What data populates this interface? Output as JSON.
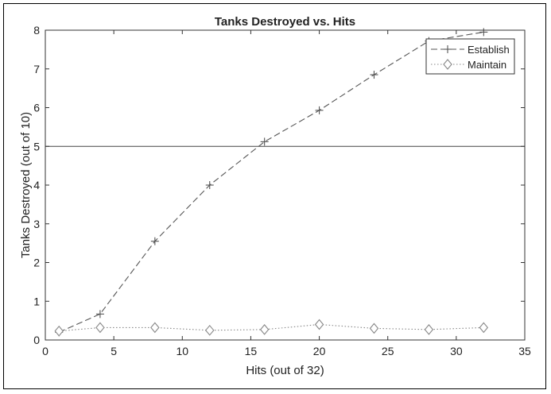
{
  "chart_data": {
    "type": "line",
    "title": "Tanks Destroyed vs. Hits",
    "xlabel": "Hits (out of 32)",
    "ylabel": "Tanks Destroyed (out of 10)",
    "xlim": [
      0,
      35
    ],
    "ylim": [
      0,
      8
    ],
    "xticks": [
      0,
      5,
      10,
      15,
      20,
      25,
      30,
      35
    ],
    "yticks": [
      0,
      1,
      2,
      3,
      4,
      5,
      6,
      7,
      8
    ],
    "grid": false,
    "legend_position": "top-right",
    "reference_lines": [
      {
        "axis": "y",
        "value": 5
      }
    ],
    "series": [
      {
        "name": "Establish",
        "marker": "plus",
        "line_style": "dashed",
        "color": "#555555",
        "x": [
          1,
          4,
          8,
          12,
          16,
          20,
          24,
          28,
          32
        ],
        "y": [
          0.2,
          0.67,
          2.55,
          4.0,
          5.12,
          5.93,
          6.85,
          7.72,
          7.95
        ]
      },
      {
        "name": "Maintain",
        "marker": "diamond",
        "line_style": "dotted",
        "color": "#888888",
        "x": [
          1,
          4,
          8,
          12,
          16,
          20,
          24,
          28,
          32
        ],
        "y": [
          0.23,
          0.32,
          0.32,
          0.25,
          0.27,
          0.4,
          0.3,
          0.27,
          0.32
        ]
      }
    ]
  }
}
